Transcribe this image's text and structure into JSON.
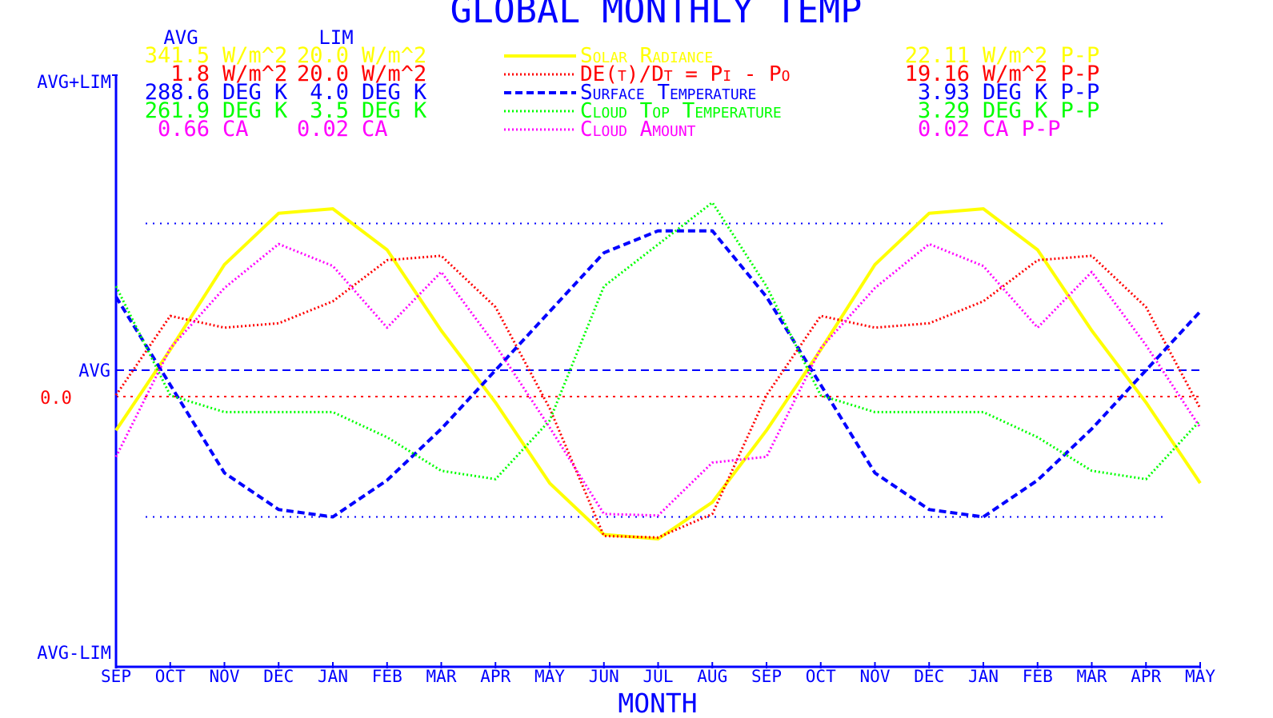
{
  "chart_data": {
    "type": "line",
    "title": "GLOBAL MONTHLY TEMP",
    "xlabel": "MONTH",
    "categories": [
      "SEP",
      "OCT",
      "NOV",
      "DEC",
      "JAN",
      "FEB",
      "MAR",
      "APR",
      "MAY",
      "JUN",
      "JUL",
      "AUG",
      "SEP",
      "OCT",
      "NOV",
      "DEC",
      "JAN",
      "FEB",
      "MAR",
      "APR",
      "MAY"
    ],
    "y_axis_labels": {
      "top": "AVG+LIM",
      "middle": "AVG",
      "bottom": "AVG-LIM",
      "zero": "0.0"
    },
    "table_headers": {
      "avg": "AVG",
      "lim": "LIM"
    },
    "series": [
      {
        "name": "Solar Radiance",
        "color": "#ffff00",
        "style": "solid",
        "avg": "341.5",
        "avg_unit": "W/m^2",
        "lim": "20.0",
        "lim_unit": "W/m^2",
        "pp": "22.11",
        "pp_unit": "W/m^2 P-P",
        "avg_value": 341.5,
        "lim_value": 20.0,
        "values": [
          337.4,
          342.9,
          348.7,
          352.2,
          352.5,
          349.7,
          344.2,
          339.3,
          333.8,
          330.3,
          330.0,
          332.5,
          337.4,
          342.9,
          348.7,
          352.2,
          352.5,
          349.7,
          344.2,
          339.3,
          333.8
        ]
      },
      {
        "name": "DE(t)/Dt = Pi - Po",
        "color": "#ff0000",
        "style": "dotted",
        "avg": "1.8",
        "avg_unit": "W/m^2",
        "lim": "20.0",
        "lim_unit": "W/m^2",
        "pp": "19.16",
        "pp_unit": "W/m^2 P-P",
        "avg_value": 1.8,
        "lim_value": 20.0,
        "values": [
          0.1,
          5.5,
          4.7,
          5.0,
          6.5,
          9.3,
          9.6,
          6.1,
          -0.8,
          -9.5,
          -9.6,
          -8.0,
          0.1,
          5.5,
          4.7,
          5.0,
          6.5,
          9.3,
          9.6,
          6.1,
          -0.8
        ]
      },
      {
        "name": "Surface Temperature",
        "color": "#0000ff",
        "style": "dashed",
        "avg": "288.6",
        "avg_unit": "DEG K",
        "lim": "4.0",
        "lim_unit": "DEG K",
        "pp": "3.93",
        "pp_unit": "DEG K P-P",
        "avg_value": 288.6,
        "lim_value": 4.0,
        "values": [
          289.6,
          288.4,
          287.2,
          286.7,
          286.6,
          287.1,
          287.8,
          288.6,
          289.4,
          290.2,
          290.5,
          290.5,
          289.6,
          288.4,
          287.2,
          286.7,
          286.6,
          287.1,
          287.8,
          288.6,
          289.4
        ]
      },
      {
        "name": "Cloud Top Temperature",
        "color": "#00ff00",
        "style": "dotted",
        "avg": "261.9",
        "avg_unit": "DEG K",
        "lim": "3.5",
        "lim_unit": "DEG K",
        "pp": "3.29",
        "pp_unit": "DEG K P-P",
        "avg_value": 261.9,
        "lim_value": 3.5,
        "values": [
          262.9,
          261.6,
          261.4,
          261.4,
          261.4,
          261.1,
          260.7,
          260.6,
          261.3,
          262.9,
          263.4,
          263.9,
          262.9,
          261.6,
          261.4,
          261.4,
          261.4,
          261.1,
          260.7,
          260.6,
          261.3
        ]
      },
      {
        "name": "Cloud Amount",
        "color": "#ff00ff",
        "style": "dotted",
        "avg": "0.66",
        "avg_unit": "CA",
        "lim": "0.02",
        "lim_unit": "CA",
        "pp": "0.02",
        "pp_unit": "CA P-P",
        "avg_value": 0.66,
        "lim_value": 0.02,
        "values": [
          0.6541,
          0.6615,
          0.6656,
          0.6686,
          0.6671,
          0.6629,
          0.6667,
          0.6617,
          0.6561,
          0.6502,
          0.6501,
          0.6537,
          0.6541,
          0.6615,
          0.6656,
          0.6686,
          0.6671,
          0.6629,
          0.6667,
          0.6617,
          0.6561
        ]
      }
    ],
    "axis_color": "#0000ff",
    "grid": false,
    "legend_placement": "top"
  }
}
